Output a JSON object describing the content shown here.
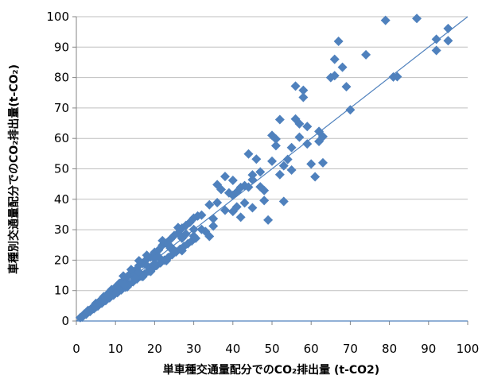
{
  "chart_data": {
    "type": "scatter",
    "title": "",
    "xlabel": "単車種交通量配分でのCO₂排出量 (t-CO2)",
    "ylabel": "車種別交通量配分でのCO₂排出量(t-CO₂)",
    "xlim": [
      0,
      100
    ],
    "ylim": [
      0,
      100
    ],
    "xticks": [
      0,
      10,
      20,
      30,
      40,
      50,
      60,
      70,
      80,
      90,
      100
    ],
    "yticks": [
      0,
      10,
      20,
      30,
      40,
      50,
      60,
      70,
      80,
      90,
      100
    ],
    "x_tick_labels": [
      "0",
      "10",
      "20",
      "30",
      "40",
      "50",
      "60",
      "70",
      "80",
      "90",
      "100"
    ],
    "y_tick_labels": [
      "0",
      "10",
      "20",
      "30",
      "40",
      "50",
      "60",
      "70",
      "80",
      "90",
      "100"
    ],
    "grid": "horizontal",
    "legend": "none",
    "reference_line": {
      "from": [
        0,
        0
      ],
      "to": [
        100,
        100
      ]
    },
    "marker": "diamond",
    "colors": {
      "marker": "#4f81bd",
      "line": "#4f81bd",
      "grid": "#bfbfbf",
      "axis": "#868686"
    },
    "series": [
      {
        "points": [
          [
            1,
            1.1
          ],
          [
            2,
            2.3
          ],
          [
            3,
            3.5
          ],
          [
            4,
            4.3
          ],
          [
            5,
            5.8
          ],
          [
            6,
            6.6
          ],
          [
            7,
            8.0
          ],
          [
            8,
            8.9
          ],
          [
            9,
            10.3
          ],
          [
            10,
            11.1
          ],
          [
            11,
            12.4
          ],
          [
            12,
            13.3
          ],
          [
            13,
            14.6
          ],
          [
            14,
            15.8
          ],
          [
            15,
            16.5
          ],
          [
            16,
            18.2
          ],
          [
            17,
            18.9
          ],
          [
            18,
            20.3
          ],
          [
            19,
            21.0
          ],
          [
            20,
            22.6
          ],
          [
            21,
            23.3
          ],
          [
            22,
            24.9
          ],
          [
            23,
            25.6
          ],
          [
            24,
            26.8
          ],
          [
            25,
            28.1
          ],
          [
            26,
            28.9
          ],
          [
            27,
            30.5
          ],
          [
            28,
            31.4
          ],
          [
            29,
            32.4
          ],
          [
            30,
            33.8
          ],
          [
            1.5,
            1.3
          ],
          [
            2.5,
            2.2
          ],
          [
            3.5,
            3.1
          ],
          [
            4.5,
            4.0
          ],
          [
            5.5,
            4.9
          ],
          [
            6.5,
            5.8
          ],
          [
            7.5,
            6.7
          ],
          [
            8.5,
            7.6
          ],
          [
            9.5,
            8.5
          ],
          [
            10.5,
            9.3
          ],
          [
            11.5,
            10.2
          ],
          [
            12.5,
            11.1
          ],
          [
            13.5,
            12.0
          ],
          [
            14.5,
            12.9
          ],
          [
            15.5,
            13.8
          ],
          [
            16.5,
            14.7
          ],
          [
            17.5,
            15.5
          ],
          [
            18.5,
            16.4
          ],
          [
            19.5,
            17.3
          ],
          [
            20.5,
            18.2
          ],
          [
            21.5,
            19.1
          ],
          [
            22.5,
            20.0
          ],
          [
            23.5,
            20.9
          ],
          [
            24.5,
            21.8
          ],
          [
            25.5,
            22.7
          ],
          [
            26.5,
            23.6
          ],
          [
            27.5,
            24.5
          ],
          [
            28.5,
            25.4
          ],
          [
            29.5,
            26.3
          ],
          [
            30.5,
            27.2
          ],
          [
            3,
            3.0
          ],
          [
            6,
            6.1
          ],
          [
            9,
            9.0
          ],
          [
            12,
            12.1
          ],
          [
            15,
            15.0
          ],
          [
            18,
            18.2
          ],
          [
            21,
            21.1
          ],
          [
            24,
            24.0
          ],
          [
            27,
            27.2
          ],
          [
            30,
            30.1
          ],
          [
            4,
            4.1
          ],
          [
            8,
            8.2
          ],
          [
            12,
            12.3
          ],
          [
            16,
            16.1
          ],
          [
            20,
            20.4
          ],
          [
            24,
            24.5
          ],
          [
            28,
            28.6
          ],
          [
            5,
            4.6
          ],
          [
            10,
            9.2
          ],
          [
            15,
            14.1
          ],
          [
            20,
            18.6
          ],
          [
            25,
            23.2
          ],
          [
            30,
            27.9
          ],
          [
            12,
            14.8
          ],
          [
            14,
            16.9
          ],
          [
            16,
            19.8
          ],
          [
            18,
            21.6
          ],
          [
            22,
            26.4
          ],
          [
            26,
            30.7
          ],
          [
            13,
            11.2
          ],
          [
            17,
            14.6
          ],
          [
            19,
            16.3
          ],
          [
            23,
            19.8
          ],
          [
            27,
            23.1
          ],
          [
            31,
            34.5
          ],
          [
            32,
            30.1
          ],
          [
            33,
            29.4
          ],
          [
            34,
            27.8
          ],
          [
            35,
            31.2
          ],
          [
            32,
            34.8
          ],
          [
            34,
            38.2
          ],
          [
            35,
            33.6
          ],
          [
            36,
            38.9
          ],
          [
            36,
            44.8
          ],
          [
            37,
            43.2
          ],
          [
            38,
            47.5
          ],
          [
            38,
            36.4
          ],
          [
            39,
            42.1
          ],
          [
            40,
            41.3
          ],
          [
            40,
            46.2
          ],
          [
            41,
            42.4
          ],
          [
            41,
            37.5
          ],
          [
            42,
            43.9
          ],
          [
            42,
            34.1
          ],
          [
            43,
            44.5
          ],
          [
            43,
            38.8
          ],
          [
            44,
            54.9
          ],
          [
            45,
            46.4
          ],
          [
            45,
            37.2
          ],
          [
            46,
            53.2
          ],
          [
            47,
            44.1
          ],
          [
            48,
            42.9
          ],
          [
            48,
            39.6
          ],
          [
            49,
            33.2
          ],
          [
            50,
            61.0
          ],
          [
            51,
            59.8
          ],
          [
            51,
            57.6
          ],
          [
            52,
            48.1
          ],
          [
            53,
            39.3
          ],
          [
            52,
            66.2
          ],
          [
            54,
            53.1
          ],
          [
            55,
            49.6
          ],
          [
            56,
            66.4
          ],
          [
            56,
            77.2
          ],
          [
            57,
            64.8
          ],
          [
            57,
            60.4
          ],
          [
            58,
            73.5
          ],
          [
            58,
            75.8
          ],
          [
            59,
            63.9
          ],
          [
            59,
            58.2
          ],
          [
            60,
            51.6
          ],
          [
            61,
            47.4
          ],
          [
            62,
            62.3
          ],
          [
            63,
            52.0
          ],
          [
            63,
            60.6
          ],
          [
            65,
            80.0
          ],
          [
            66,
            80.6
          ],
          [
            66,
            86.0
          ],
          [
            67,
            91.9
          ],
          [
            68,
            83.4
          ],
          [
            69,
            77.0
          ],
          [
            70,
            69.4
          ],
          [
            74,
            87.5
          ],
          [
            79,
            98.8
          ],
          [
            81,
            80.2
          ],
          [
            82,
            80.3
          ],
          [
            87,
            99.4
          ],
          [
            92,
            92.6
          ],
          [
            92,
            88.9
          ],
          [
            95,
            96.1
          ],
          [
            95,
            92.1
          ],
          [
            40,
            36.0
          ],
          [
            45,
            48.0
          ],
          [
            55,
            57.0
          ],
          [
            62,
            59.0
          ],
          [
            50,
            52.5
          ],
          [
            44,
            44.0
          ],
          [
            47,
            49.0
          ],
          [
            53,
            51.0
          ]
        ]
      }
    ]
  }
}
